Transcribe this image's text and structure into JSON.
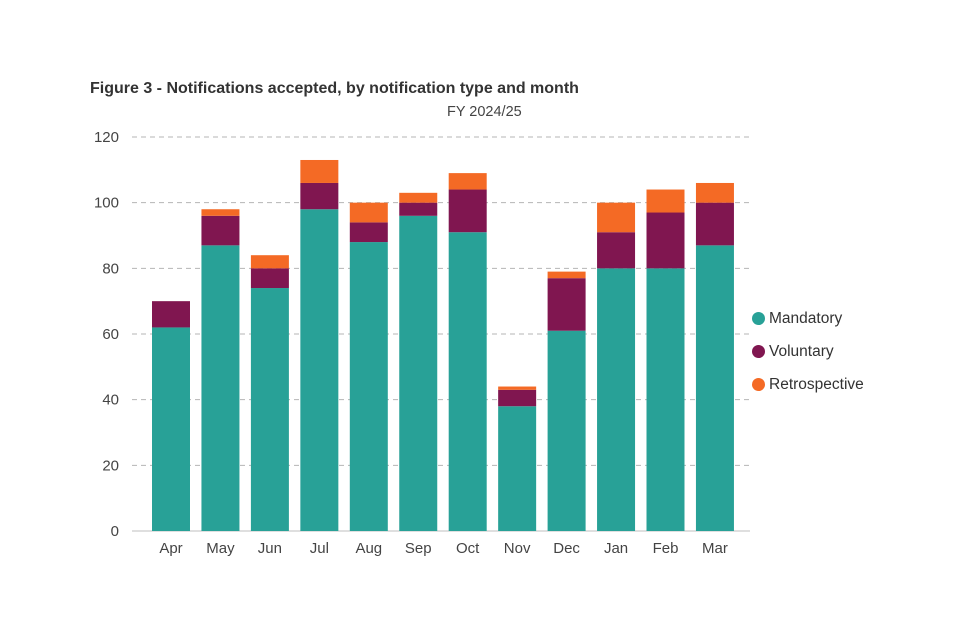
{
  "chart_data": {
    "type": "bar",
    "stacked": true,
    "title": "Figure 3 - Notifications accepted, by notification type and month",
    "subtitle": "FY 2024/25",
    "xlabel": "",
    "ylabel": "",
    "ylim": [
      0,
      120
    ],
    "yticks": [
      0,
      20,
      40,
      60,
      80,
      100,
      120
    ],
    "grid": "horizontal dashed",
    "legend_position": "right",
    "categories": [
      "Apr",
      "May",
      "Jun",
      "Jul",
      "Aug",
      "Sep",
      "Oct",
      "Nov",
      "Dec",
      "Jan",
      "Feb",
      "Mar"
    ],
    "series": [
      {
        "name": "Mandatory",
        "color": "#28a197",
        "values": [
          62,
          87,
          74,
          98,
          88,
          96,
          91,
          38,
          61,
          80,
          80,
          87
        ]
      },
      {
        "name": "Voluntary",
        "color": "#801650",
        "values": [
          8,
          9,
          6,
          8,
          6,
          4,
          13,
          5,
          16,
          11,
          17,
          13
        ]
      },
      {
        "name": "Retrospective",
        "color": "#f46a25",
        "values": [
          0,
          2,
          4,
          7,
          6,
          3,
          5,
          1,
          2,
          9,
          7,
          6
        ]
      }
    ]
  }
}
